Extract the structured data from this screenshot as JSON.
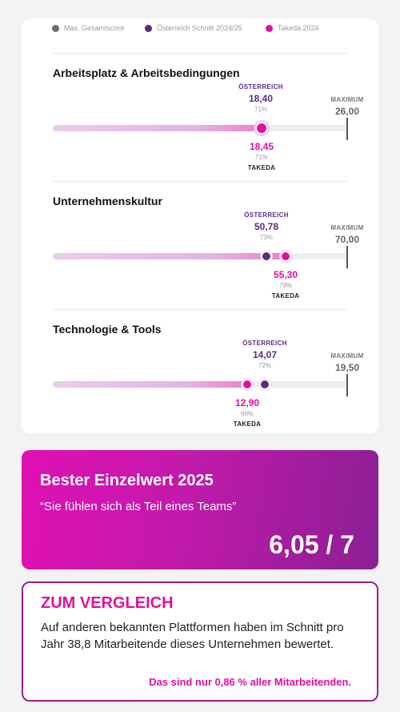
{
  "legend": [
    {
      "label": "Max. Gesamtscore",
      "color": "#6f6f6f"
    },
    {
      "label": "Österreich Schnitt 2024/25",
      "color": "#5b2a86"
    },
    {
      "label": "Takeda 2024",
      "color": "#e0109e"
    }
  ],
  "colors": {
    "austria": "#5b2a86",
    "takeda": "#e0109e",
    "maximum": "#555555"
  },
  "sections": [
    {
      "title": "Arbeitsplatz & Arbeitsbedingungen",
      "austria": {
        "label": "ÖSTERREICH",
        "value": "18,40",
        "percent": "71%",
        "fraction": 0.71
      },
      "takeda": {
        "label": "TAKEDA",
        "value": "18,45",
        "percent": "71%",
        "fraction": 0.71
      },
      "maximum": {
        "label": "MAXIMUM",
        "value": "26,00"
      }
    },
    {
      "title": "Unternehmenskultur",
      "austria": {
        "label": "ÖSTERREICH",
        "value": "50,78",
        "percent": "73%",
        "fraction": 0.73
      },
      "takeda": {
        "label": "TAKEDA",
        "value": "55,30",
        "percent": "79%",
        "fraction": 0.79
      },
      "maximum": {
        "label": "MAXIMUM",
        "value": "70,00"
      }
    },
    {
      "title": "Technologie & Tools",
      "austria": {
        "label": "ÖSTERREICH",
        "value": "14,07",
        "percent": "72%",
        "fraction": 0.72
      },
      "takeda": {
        "label": "TAKEDA",
        "value": "12,90",
        "percent": "66%",
        "fraction": 0.66
      },
      "maximum": {
        "label": "MAXIMUM",
        "value": "19,50"
      }
    }
  ],
  "best": {
    "title": "Bester Einzelwert 2025",
    "quote": "“Sie fühlen sich als Teil eines Teams”",
    "score": "6,05 / 7"
  },
  "compare": {
    "title": "ZUM VERGLEICH",
    "text": "Auf anderen bekannten Plattformen haben im Schnitt pro Jahr 38,8 Mitarbeitende dieses Unternehmen bewertet.",
    "note": "Das sind nur 0,86 % aller Mitarbeitenden."
  }
}
